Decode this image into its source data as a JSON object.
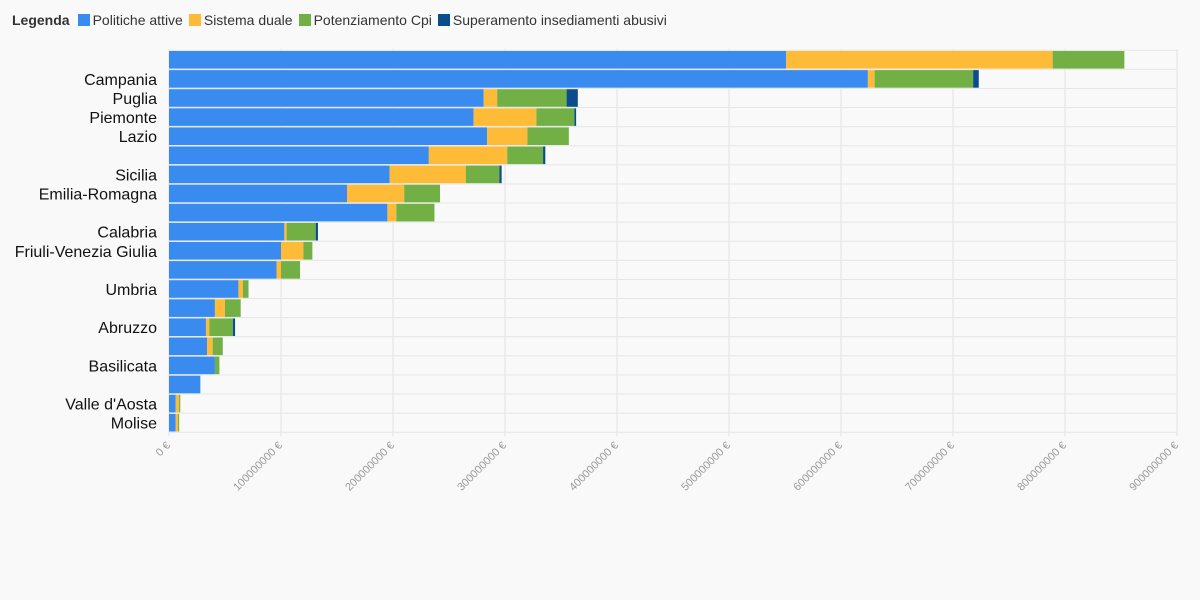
{
  "legend": {
    "title": "Legenda",
    "items": [
      {
        "label": "Politiche attive",
        "color": "#3a8bf0"
      },
      {
        "label": "Sistema duale",
        "color": "#fdbb37"
      },
      {
        "label": "Potenziamento Cpi",
        "color": "#72b045"
      },
      {
        "label": "Superamento insediamenti abusivi",
        "color": "#0b4d8c"
      }
    ]
  },
  "chart_data": {
    "type": "bar",
    "orientation": "horizontal",
    "stacked": true,
    "title": "",
    "xlabel": "",
    "ylabel": "",
    "xlim": [
      0,
      900000000
    ],
    "x_ticks": [
      {
        "value": 0,
        "label": "0 €"
      },
      {
        "value": 100000000,
        "label": "100000000 €"
      },
      {
        "value": 200000000,
        "label": "200000000 €"
      },
      {
        "value": 300000000,
        "label": "300000000 €"
      },
      {
        "value": 400000000,
        "label": "400000000 €"
      },
      {
        "value": 500000000,
        "label": "500000000 €"
      },
      {
        "value": 600000000,
        "label": "600000000 €"
      },
      {
        "value": 700000000,
        "label": "700000000 €"
      },
      {
        "value": 800000000,
        "label": "800000000 €"
      },
      {
        "value": 900000000,
        "label": "900000000 €"
      }
    ],
    "grid": true,
    "legend_position": "top-left",
    "categories": [
      "",
      "Campania",
      "Puglia",
      "Piemonte",
      "Lazio",
      "",
      "Sicilia",
      "Emilia-Romagna",
      "",
      "Calabria",
      "Friuli-Venezia Giulia",
      "",
      "Umbria",
      "",
      "Abruzzo",
      "",
      "Basilicata",
      "",
      "Valle d'Aosta",
      "Molise"
    ],
    "series": [
      {
        "name": "Politiche attive",
        "color": "#3a8bf0",
        "values": [
          551000000,
          624000000,
          281000000,
          272000000,
          284000000,
          232000000,
          197000000,
          159000000,
          195000000,
          103000000,
          100000000,
          96000000,
          62000000,
          41000000,
          33000000,
          34000000,
          41000000,
          28000000,
          6000000,
          6000000
        ]
      },
      {
        "name": "Sistema duale",
        "color": "#fdbb37",
        "values": [
          238000000,
          6000000,
          12000000,
          56000000,
          36000000,
          70000000,
          68000000,
          51000000,
          8000000,
          2000000,
          20000000,
          4000000,
          4000000,
          9000000,
          3000000,
          5000000,
          0,
          0,
          3000000,
          2000000
        ]
      },
      {
        "name": "Potenziamento Cpi",
        "color": "#72b045",
        "values": [
          64000000,
          88000000,
          62000000,
          34000000,
          37000000,
          32000000,
          30000000,
          32000000,
          34000000,
          26000000,
          8000000,
          17000000,
          5000000,
          14000000,
          21000000,
          9000000,
          4000000,
          0,
          1000000,
          1000000
        ]
      },
      {
        "name": "Superamento insediamenti abusivi",
        "color": "#0b4d8c",
        "values": [
          0,
          5000000,
          10000000,
          1500000,
          0,
          2000000,
          2000000,
          0,
          0,
          2000000,
          0,
          0,
          0,
          0,
          2000000,
          0,
          0,
          0,
          0,
          0
        ]
      }
    ]
  }
}
